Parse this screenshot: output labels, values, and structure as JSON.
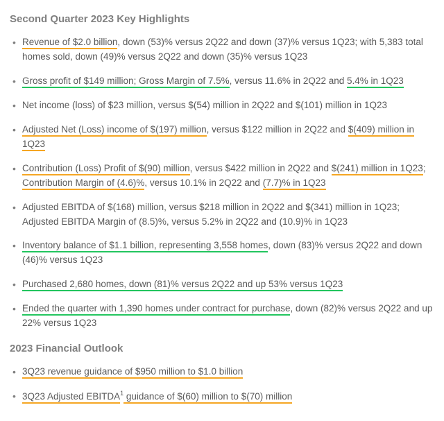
{
  "colors": {
    "text": "#595959",
    "heading": "#808080",
    "underline_green": "#22c55e",
    "underline_orange": "#f5a623",
    "background": "#ffffff"
  },
  "typography": {
    "body_fontsize_pt": 10,
    "heading_fontsize_pt": 11,
    "heading_weight": "700",
    "font_family": "Arial, Helvetica, sans-serif",
    "line_height": 1.55
  },
  "sections": [
    {
      "heading": "Second Quarter 2023 Key Highlights",
      "items": [
        {
          "segments": [
            {
              "text": "Revenue of $2.0 billion",
              "underline": "orange"
            },
            {
              "text": ", down (53)% versus 2Q22 and down (37)% versus 1Q23; with 5,383 total homes sold, down (49)% versus 2Q22 and down (35)% versus 1Q23",
              "underline": null
            }
          ]
        },
        {
          "segments": [
            {
              "text": "Gross profit of $149 million; Gross Margin of 7.5%",
              "underline": "green"
            },
            {
              "text": ", versus 11.6% in 2Q22 and ",
              "underline": null
            },
            {
              "text": "5.4% in 1Q23",
              "underline": "green"
            }
          ]
        },
        {
          "segments": [
            {
              "text": "Net income (loss) of $23 million, versus $(54) million in 2Q22 and $(101) million in 1Q23",
              "underline": null
            }
          ]
        },
        {
          "segments": [
            {
              "text": "Adjusted Net (Loss) income of $(197) million",
              "underline": "orange"
            },
            {
              "text": ", versus $122 million in 2Q22 and ",
              "underline": null
            },
            {
              "text": "$(409) million in 1Q23",
              "underline": "orange"
            }
          ]
        },
        {
          "segments": [
            {
              "text": "Contribution (Loss) Profit of $(90) million",
              "underline": "orange"
            },
            {
              "text": ", versus $422 million in 2Q22 and ",
              "underline": null
            },
            {
              "text": "$(241) million in 1Q23",
              "underline": "orange"
            },
            {
              "text": "; ",
              "underline": null
            },
            {
              "text": "Contribution Margin of (4.6)%",
              "underline": "orange"
            },
            {
              "text": ", versus 10.1% in 2Q22 and ",
              "underline": null
            },
            {
              "text": "(7.7)% in 1Q23",
              "underline": "orange"
            }
          ]
        },
        {
          "segments": [
            {
              "text": "Adjusted EBITDA of $(168) million, versus $218 million in 2Q22 and $(341) million in 1Q23; Adjusted EBITDA Margin of (8.5)%, versus 5.2% in 2Q22 and (10.9)% in 1Q23",
              "underline": null
            }
          ]
        },
        {
          "segments": [
            {
              "text": "Inventory balance of $1.1 billion, representing 3,558 homes",
              "underline": "green"
            },
            {
              "text": ", down (83)% versus 2Q22 and down (46)% versus 1Q23",
              "underline": null
            }
          ]
        },
        {
          "segments": [
            {
              "text": "Purchased 2,680 homes, down (81)% versus 2Q22 and up 53% versus 1Q23",
              "underline": "green"
            }
          ]
        },
        {
          "segments": [
            {
              "text": "Ended the quarter with 1,390 homes under contract for purchase",
              "underline": "green"
            },
            {
              "text": ", down (82)% versus 2Q22 and up 22% versus 1Q23",
              "underline": null
            }
          ]
        }
      ]
    },
    {
      "heading": "2023 Financial Outlook",
      "items": [
        {
          "segments": [
            {
              "text": "3Q23 revenue guidance of $950 million to $1.0 billion",
              "underline": "orange"
            }
          ]
        },
        {
          "segments": [
            {
              "text": "3Q23 Adjusted EBITDA",
              "underline": "orange"
            },
            {
              "text": "1",
              "underline": null,
              "sup": true
            },
            {
              "text": " guidance of $(60) million to $(70) million",
              "underline": "orange"
            }
          ]
        }
      ]
    }
  ]
}
